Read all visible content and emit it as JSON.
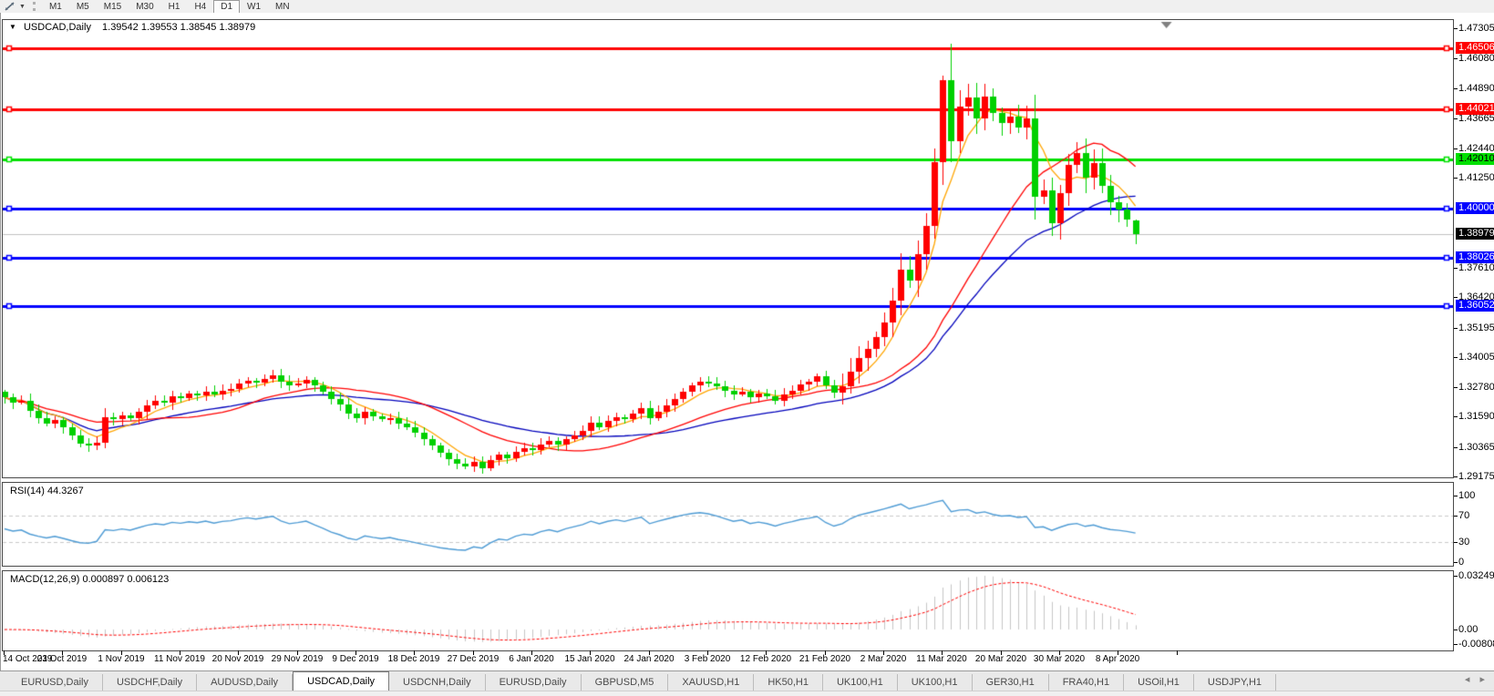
{
  "toolbar": {
    "chart_icon": "chart-mode",
    "timeframes": [
      "M1",
      "M5",
      "M15",
      "M30",
      "H1",
      "H4",
      "D1",
      "W1",
      "MN"
    ],
    "active_timeframe": "D1"
  },
  "chart": {
    "title": {
      "symbol": "USDCAD,Daily",
      "ohlc_text": "1.39542 1.39553 1.38545 1.38979"
    }
  },
  "price_axis": {
    "plain_ticks": [
      "1.47305",
      "1.46080",
      "1.44890",
      "1.43665",
      "1.42440",
      "1.41250",
      "1.37610",
      "1.36420",
      "1.35195",
      "1.34005",
      "1.32780",
      "1.31590",
      "1.30365",
      "1.29175"
    ],
    "badges": [
      {
        "label": "1.46506",
        "price": 1.46506,
        "bg": "#ff0000",
        "fg": "#ffffff"
      },
      {
        "label": "1.44021",
        "price": 1.44021,
        "bg": "#ff0000",
        "fg": "#ffffff"
      },
      {
        "label": "1.42010",
        "price": 1.4201,
        "bg": "#00e000",
        "fg": "#000000"
      },
      {
        "label": "1.40000",
        "price": 1.4,
        "bg": "#0000ff",
        "fg": "#ffffff"
      },
      {
        "label": "1.38979",
        "price": 1.38979,
        "bg": "#000000",
        "fg": "#ffffff"
      },
      {
        "label": "1.38026",
        "price": 1.38026,
        "bg": "#0000ff",
        "fg": "#ffffff"
      },
      {
        "label": "1.36052",
        "price": 1.36052,
        "bg": "#0000ff",
        "fg": "#ffffff"
      }
    ]
  },
  "time_axis": {
    "dates": [
      "14 Oct 2019",
      "23 Oct 2019",
      "1 Nov 2019",
      "11 Nov 2019",
      "20 Nov 2019",
      "29 Nov 2019",
      "9 Dec 2019",
      "18 Dec 2019",
      "27 Dec 2019",
      "6 Jan 2020",
      "15 Jan 2020",
      "24 Jan 2020",
      "3 Feb 2020",
      "12 Feb 2020",
      "21 Feb 2020",
      "2 Mar 2020",
      "11 Mar 2020",
      "20 Mar 2020",
      "30 Mar 2020",
      "8 Apr 2020"
    ]
  },
  "chart_data": {
    "type": "candlestick",
    "symbol": "USDCAD",
    "period": "Daily",
    "current_bar": {
      "open": 1.39542,
      "high": 1.39553,
      "low": 1.38545,
      "close": 1.38979
    },
    "price_range": {
      "top": 1.47305,
      "bottom": 1.29175
    },
    "closes": [
      1.3238,
      1.3215,
      1.3225,
      1.3182,
      1.3155,
      1.3132,
      1.3145,
      1.3118,
      1.3085,
      1.3052,
      1.3042,
      1.3055,
      1.3158,
      1.3148,
      1.3165,
      1.3152,
      1.3178,
      1.3205,
      1.3222,
      1.3215,
      1.3242,
      1.3235,
      1.3252,
      1.3245,
      1.3262,
      1.3248,
      1.3265,
      1.3272,
      1.3292,
      1.3305,
      1.3298,
      1.3312,
      1.3328,
      1.3302,
      1.3285,
      1.3295,
      1.3308,
      1.3285,
      1.3262,
      1.3232,
      1.3208,
      1.3172,
      1.3152,
      1.3178,
      1.3162,
      1.3148,
      1.3155,
      1.3132,
      1.3118,
      1.3095,
      1.3068,
      1.3042,
      1.3012,
      1.2988,
      1.2968,
      1.2958,
      1.2975,
      1.2952,
      1.2982,
      1.3005,
      1.2992,
      1.3018,
      1.3032,
      1.3025,
      1.3048,
      1.3062,
      1.3045,
      1.3068,
      1.3085,
      1.3102,
      1.3135,
      1.3118,
      1.3142,
      1.3158,
      1.3148,
      1.3172,
      1.3195,
      1.3152,
      1.3178,
      1.3205,
      1.3232,
      1.3262,
      1.3285,
      1.3302,
      1.3295,
      1.3282,
      1.3265,
      1.3248,
      1.3262,
      1.3238,
      1.3252,
      1.3242,
      1.3225,
      1.3248,
      1.3265,
      1.3288,
      1.3302,
      1.3322,
      1.3285,
      1.3258,
      1.3282,
      1.3342,
      1.3398,
      1.3435,
      1.3482,
      1.3542,
      1.3628,
      1.3755,
      1.3708,
      1.3815,
      1.3932,
      1.4188,
      1.4522,
      1.4275,
      1.4415,
      1.4452,
      1.4365,
      1.4455,
      1.4388,
      1.4348,
      1.4372,
      1.4328,
      1.4365,
      1.4048,
      1.4075,
      1.3942,
      1.4062,
      1.4178,
      1.4225,
      1.4128,
      1.4185,
      1.4092,
      1.4028,
      1.3998,
      1.3955,
      1.38979
    ],
    "first_open": 1.326,
    "high_overrides": {
      "112": 1.454,
      "113": 1.4668
    },
    "colors": {
      "bull": "#ff0000",
      "bear": "#00d000",
      "wick_bull": "#ff0000",
      "wick_bear": "#00d000",
      "ma_fast": "#ffa500",
      "ma_mid": "#ff0000",
      "ma_slow": "#0000bb",
      "current_price_line": "#c0c0c0",
      "shift_marker": "#808080"
    },
    "moving_averages": [
      {
        "name": "fast",
        "period": 8,
        "color": "#ffa500"
      },
      {
        "name": "mid",
        "period": 20,
        "color": "#ff0000"
      },
      {
        "name": "slow",
        "period": 45,
        "color": "#0000bb"
      }
    ],
    "horizontal_levels": [
      {
        "price": 1.46506,
        "color": "#ff0000"
      },
      {
        "price": 1.44021,
        "color": "#ff0000"
      },
      {
        "price": 1.4201,
        "color": "#00e000"
      },
      {
        "price": 1.4,
        "color": "#0000ff"
      },
      {
        "price": 1.38026,
        "color": "#0000ff"
      },
      {
        "price": 1.36052,
        "color": "#0000ff"
      }
    ],
    "current_price": 1.38979
  },
  "indicators": {
    "rsi": {
      "label": "RSI(14) 44.3267",
      "period": 14,
      "value": "44.3267",
      "axis_ticks": [
        "100",
        "70",
        "30",
        "0"
      ],
      "levels": [
        70,
        30
      ],
      "line_color": "#4e9bd4",
      "level_color": "#c8c8c8"
    },
    "macd": {
      "label": "MACD(12,26,9) 0.000897 0.006123",
      "main_value": "0.000897",
      "signal_value": "0.006123",
      "axis_ticks": [
        "0.032493",
        "0.00",
        "-0.008086"
      ],
      "bar_color": "#c6c6c6",
      "signal_color": "#ff0000"
    }
  },
  "tabs": {
    "items": [
      "EURUSD,Daily",
      "USDCHF,Daily",
      "AUDUSD,Daily",
      "USDCAD,Daily",
      "USDCNH,Daily",
      "EURUSD,Daily",
      "GBPUSD,M5",
      "XAUUSD,H1",
      "HK50,H1",
      "UK100,H1",
      "UK100,H1",
      "GER30,H1",
      "FRA40,H1",
      "USOil,H1",
      "USDJPY,H1"
    ],
    "active_index": 3,
    "nav_arrows": "◂ ▸"
  }
}
